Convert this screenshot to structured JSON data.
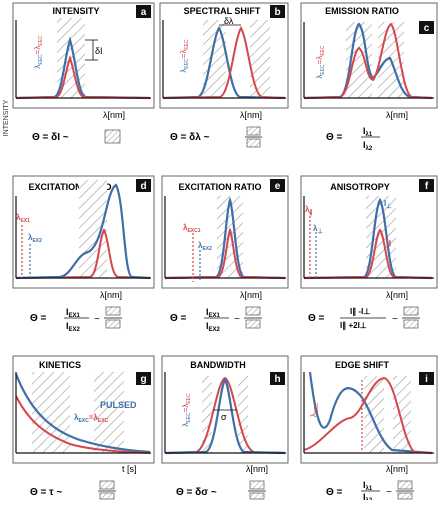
{
  "figure": {
    "y_axis_label": "INTENSITY",
    "colors": {
      "blue": "#3f6fa8",
      "red": "#d5474c",
      "hatch": "#9a9a9a",
      "axis": "#111111"
    },
    "panels": [
      {
        "id": "a",
        "letter": "a",
        "title": "INTENSITY",
        "xlabel": "λ[nm]",
        "annotations": [
          "λ",
          "EEC",
          "=λ",
          "EEC",
          "δI"
        ],
        "formula": "Θ = δI ~"
      },
      {
        "id": "b",
        "letter": "b",
        "title": "SPECTRAL SHIFT",
        "xlabel": "λ[nm]",
        "annotations": [
          "λ",
          "EEC",
          "=λ",
          "EEC",
          "δλ"
        ],
        "formula": "Θ = δλ ~"
      },
      {
        "id": "c",
        "letter": "c",
        "title": "EMISSION RATIO",
        "xlabel": "λ[nm]",
        "annotations": [
          "λ",
          "EEC",
          "=λ",
          "EEC"
        ],
        "formula": "Θ =",
        "fraction": {
          "num": "I",
          "num_sub": "λ1",
          "den": "I",
          "den_sub": "λ2"
        }
      },
      {
        "id": "d",
        "letter": "d",
        "title": "EXCITATION RATIO",
        "xlabel": "λ[nm]",
        "annotations": [
          "λ",
          "EX1",
          "λ",
          "EX2"
        ],
        "formula": "Θ =",
        "fraction": {
          "num": "I",
          "num_sub": "EX1",
          "den": "I",
          "den_sub": "EX2"
        }
      },
      {
        "id": "e",
        "letter": "e",
        "title": "EXCITATION RATIO",
        "xlabel": "λ[nm]",
        "annotations": [
          "λ",
          "EXC1",
          "λ",
          "EX2"
        ],
        "formula": "Θ =",
        "fraction": {
          "num": "I",
          "num_sub": "EX1",
          "den": "I",
          "den_sub": "EX2"
        }
      },
      {
        "id": "f",
        "letter": "f",
        "title": "ANISOTROPY",
        "xlabel": "λ[nm]",
        "annotations": [
          "λ",
          "∥",
          "λ",
          "⊥",
          "I",
          "⊥",
          "I",
          "∥"
        ],
        "formula": "Θ =",
        "fraction": {
          "num": "I∥ -I⊥",
          "den": "I∥ +2I⊥"
        }
      },
      {
        "id": "g",
        "letter": "g",
        "title": "KINETICS",
        "xlabel": "t [s]",
        "annotations": [
          "PULSED",
          "λ",
          "EXC",
          "=λ",
          "EXC"
        ],
        "formula": "Θ = τ ~"
      },
      {
        "id": "h",
        "letter": "h",
        "title": "BANDWIDTH",
        "xlabel": "λ[nm]",
        "annotations": [
          "λ",
          "EEC",
          "=λ",
          "EEC",
          "σ"
        ],
        "formula": "Θ = δσ ~"
      },
      {
        "id": "i",
        "letter": "i",
        "title": "EDGE SHIFT",
        "xlabel": "λ[nm]",
        "annotations": [
          "λ",
          "EEC"
        ],
        "formula": "Θ =",
        "fraction": {
          "num": "I",
          "num_sub": "λ1",
          "den": "I",
          "den_sub": "λ2"
        }
      }
    ]
  }
}
